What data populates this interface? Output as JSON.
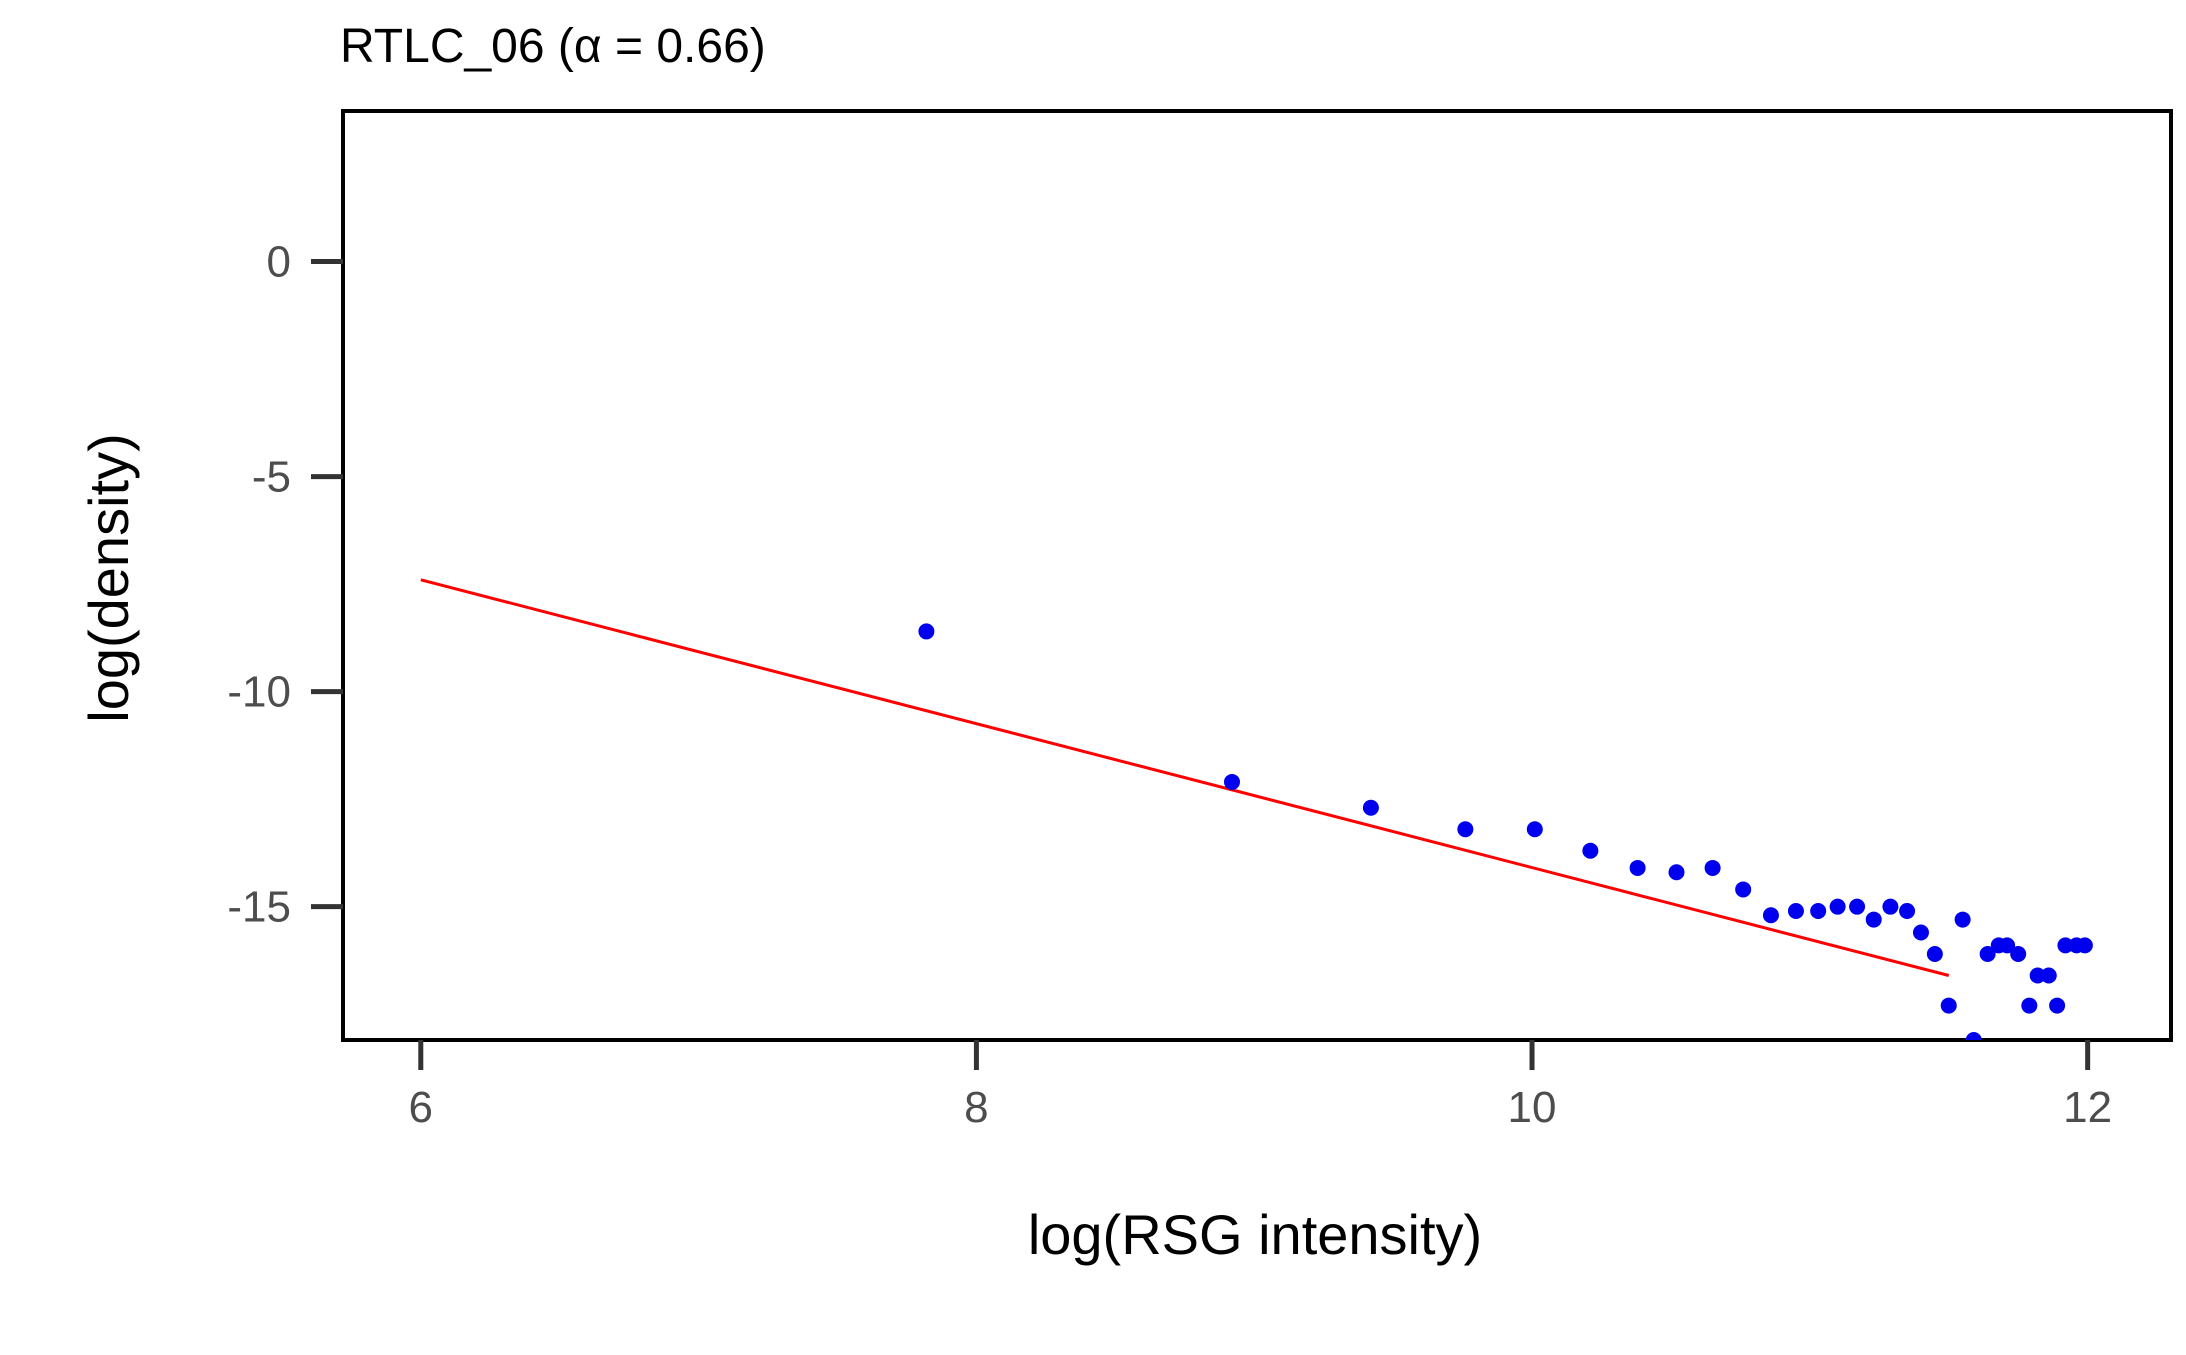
{
  "chart_data": {
    "type": "scatter",
    "title": "RTLC_06 (α = 0.66)",
    "xlabel": "log(RSG intensity)",
    "ylabel": "log(density)",
    "xlim": [
      5.72,
      12.3
    ],
    "ylim": [
      -18.1,
      3.5
    ],
    "xticks": [
      6,
      8,
      10,
      12
    ],
    "xtick_labels": [
      "6",
      "8",
      "10",
      "12"
    ],
    "yticks": [
      0,
      -5,
      -10,
      -15
    ],
    "ytick_labels": [
      "0",
      "-5",
      "-10",
      "-15"
    ],
    "grid": false,
    "legend": "none",
    "colors": {
      "points": "#0000ee",
      "fit_line": "#ff0000",
      "frame": "#000000",
      "ticks": "#333333"
    },
    "series": [
      {
        "type": "scatter",
        "x": [
          7.82,
          8.92,
          9.42,
          9.76,
          10.01,
          10.21,
          10.38,
          10.52,
          10.65,
          10.76,
          10.86,
          10.95,
          11.03,
          11.1,
          11.17,
          11.23,
          11.29,
          11.35,
          11.4,
          11.45,
          11.5,
          11.55,
          11.59,
          11.64,
          11.68,
          11.71,
          11.75,
          11.79,
          11.82,
          11.86,
          11.89,
          11.92,
          11.96,
          11.99
        ],
        "y": [
          -8.6,
          -12.1,
          -12.7,
          -13.2,
          -13.2,
          -13.7,
          -14.1,
          -14.2,
          -14.1,
          -14.6,
          -15.2,
          -15.1,
          -15.1,
          -15.0,
          -15.0,
          -15.3,
          -15.0,
          -15.1,
          -15.6,
          -16.1,
          -17.3,
          -15.3,
          -18.1,
          -16.1,
          -15.9,
          -15.9,
          -16.1,
          -17.3,
          -16.6,
          -16.6,
          -17.3,
          -15.9,
          -15.9,
          -15.9
        ]
      },
      {
        "type": "line",
        "x": [
          6.0,
          11.5
        ],
        "y": [
          -7.4,
          -16.6
        ]
      }
    ]
  }
}
